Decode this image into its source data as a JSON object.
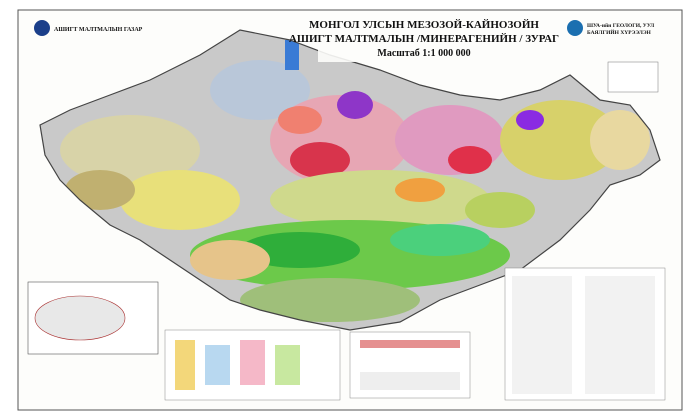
{
  "header": {
    "title_line1": "МОНГОЛ УЛСЫН МЕЗОЗОЙ-КАЙНОЗОЙН",
    "title_line2": "АШИГТ МАЛТМАЛЫН /МИНЕРАГЕНИЙН / ЗУРАГ",
    "scale": "Масштаб 1:1 000 000",
    "left_org": "АШИГТ МАЛТМАЛЫН ГАЗАР",
    "right_org_line1": "ШУА-ийн ГЕОЛОГИ, УУЛ",
    "right_org_line2": "БАЯЛГИЙН ХҮРЭЭЛЭН"
  }
}
